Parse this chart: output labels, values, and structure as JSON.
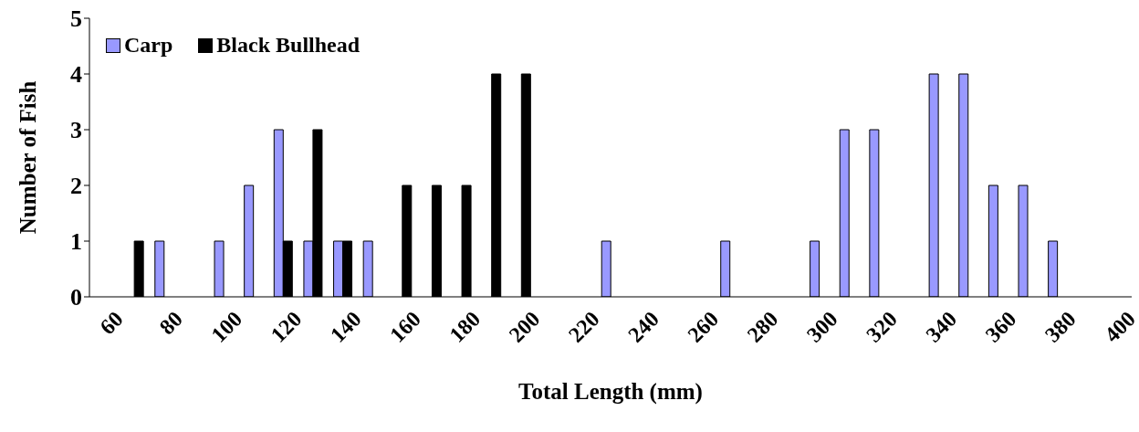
{
  "chart_data": {
    "type": "bar",
    "categories": [
      "60",
      null,
      "80",
      null,
      "100",
      null,
      "120",
      null,
      "140",
      null,
      "160",
      null,
      "180",
      null,
      "200",
      null,
      "220",
      null,
      "240",
      null,
      "260",
      null,
      "280",
      null,
      "300",
      null,
      "320",
      null,
      "340",
      null,
      "360",
      null,
      "380",
      null,
      "400"
    ],
    "series": [
      {
        "name": "Carp",
        "color": "#9999ff",
        "values": [
          0,
          0,
          1,
          0,
          1,
          2,
          3,
          1,
          1,
          1,
          0,
          0,
          0,
          0,
          0,
          0,
          0,
          1,
          0,
          0,
          0,
          1,
          0,
          0,
          1,
          3,
          3,
          0,
          4,
          4,
          2,
          2,
          1,
          0,
          0
        ]
      },
      {
        "name": "Black Bullhead",
        "color": "#000000",
        "values": [
          0,
          1,
          0,
          0,
          0,
          0,
          1,
          3,
          1,
          0,
          2,
          2,
          2,
          4,
          4,
          0,
          0,
          0,
          0,
          0,
          0,
          0,
          0,
          0,
          0,
          0,
          0,
          0,
          0,
          0,
          0,
          0,
          0,
          0,
          0
        ]
      }
    ],
    "xlabel": "Total Length (mm)",
    "ylabel": "Number of Fish",
    "ylim": [
      0,
      5
    ],
    "yticks": [
      0,
      1,
      2,
      3,
      4,
      5
    ],
    "grid": false,
    "legend": "top left"
  }
}
